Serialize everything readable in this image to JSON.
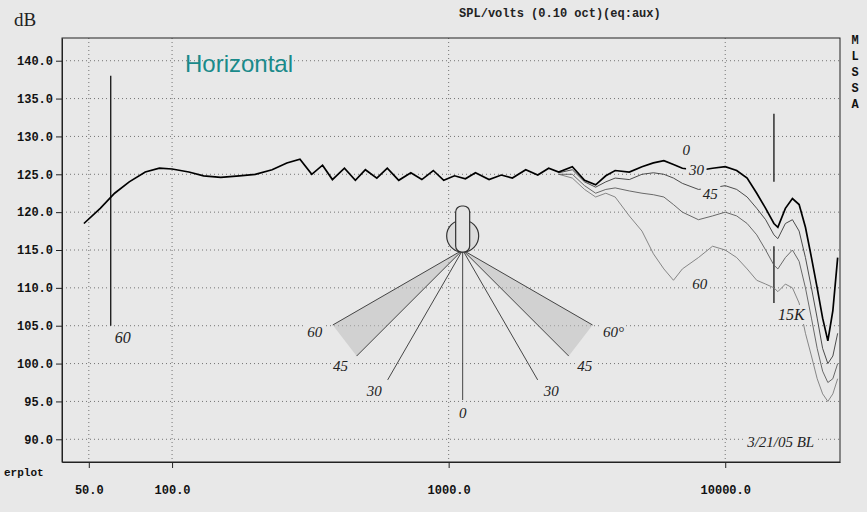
{
  "chart_data": {
    "type": "line",
    "title": "SPL/volts (0.10 oct)(eq:aux)",
    "subtitle": "Horizontal",
    "subtitle_color": "#1a8a8a",
    "ylabel": "dB",
    "footer": "erplot",
    "side_label": "MLSSA",
    "log": "x",
    "grid": true,
    "xlim": [
      40,
      26000
    ],
    "ylim": [
      87,
      143
    ],
    "xticks": [
      {
        "value": 50,
        "label": "50.0"
      },
      {
        "value": 100,
        "label": "100.0"
      },
      {
        "value": 1000,
        "label": "1000.0"
      },
      {
        "value": 10000,
        "label": "10000.0"
      }
    ],
    "yticks": [
      {
        "value": 90,
        "label": "90.0"
      },
      {
        "value": 95,
        "label": "95.0"
      },
      {
        "value": 100,
        "label": "100.0"
      },
      {
        "value": 105,
        "label": "105.0"
      },
      {
        "value": 110,
        "label": "110.0"
      },
      {
        "value": 115,
        "label": "115.0"
      },
      {
        "value": 120,
        "label": "120.0"
      },
      {
        "value": 125,
        "label": "125.0"
      },
      {
        "value": 130,
        "label": "130.0"
      },
      {
        "value": 135,
        "label": "135.0"
      },
      {
        "value": 140,
        "label": "140.0"
      }
    ],
    "x": [
      48,
      55,
      62,
      70,
      80,
      90,
      100,
      115,
      130,
      150,
      175,
      200,
      230,
      260,
      290,
      320,
      350,
      380,
      420,
      460,
      500,
      550,
      600,
      660,
      730,
      800,
      880,
      960,
      1050,
      1150,
      1250,
      1400,
      1550,
      1700,
      1900,
      2100,
      2300,
      2500,
      2800,
      3100,
      3400,
      3700,
      4000,
      4500,
      5000,
      5500,
      6000,
      6500,
      7000,
      8000,
      9000,
      10000,
      11000,
      12000,
      13000,
      14000,
      15000,
      15500,
      16500,
      17500,
      18500,
      19500,
      20500,
      21500,
      22500,
      23500,
      24500,
      25500
    ],
    "series": [
      {
        "name": "0",
        "color": "#000000",
        "values": [
          118.5,
          120.5,
          122.5,
          124,
          125.3,
          125.8,
          125.7,
          125.3,
          124.8,
          124.6,
          124.8,
          125,
          125.6,
          126.5,
          127,
          125,
          126.2,
          124.3,
          125.8,
          124.2,
          125.6,
          124.5,
          125.8,
          124.2,
          125.2,
          124.3,
          125.5,
          124.2,
          124.8,
          124.4,
          125.2,
          124.3,
          124.9,
          124.5,
          125.6,
          124.9,
          125.8,
          125.3,
          126,
          124.2,
          123.6,
          124.8,
          125.5,
          125.3,
          126,
          126.5,
          126.8,
          126.3,
          125.8,
          125.5,
          125.8,
          126,
          125.5,
          124.5,
          122.5,
          120.5,
          118.5,
          118,
          120.5,
          121.8,
          121,
          118,
          114,
          110,
          106,
          103,
          107,
          114
        ]
      },
      {
        "name": "30",
        "color": "#3a3a3a",
        "values": [
          null,
          null,
          null,
          null,
          null,
          null,
          null,
          null,
          null,
          null,
          null,
          null,
          null,
          null,
          null,
          null,
          null,
          null,
          null,
          null,
          null,
          null,
          null,
          null,
          null,
          null,
          null,
          null,
          null,
          null,
          null,
          null,
          null,
          null,
          null,
          null,
          null,
          125.2,
          125.6,
          124,
          123.3,
          124,
          124.5,
          124.3,
          125,
          125.2,
          125,
          124.5,
          123.8,
          123,
          123.2,
          123.5,
          123,
          122,
          120.5,
          119,
          117,
          116.5,
          118.5,
          119,
          117.5,
          114,
          110,
          106,
          102,
          100,
          101,
          104
        ]
      },
      {
        "name": "45",
        "color": "#5a5a5a",
        "values": [
          null,
          null,
          null,
          null,
          null,
          null,
          null,
          null,
          null,
          null,
          null,
          null,
          null,
          null,
          null,
          null,
          null,
          null,
          null,
          null,
          null,
          null,
          null,
          null,
          null,
          null,
          null,
          null,
          null,
          null,
          null,
          null,
          null,
          null,
          null,
          null,
          null,
          125,
          125,
          123.5,
          122.5,
          123,
          123.2,
          122.8,
          122.5,
          122.3,
          122,
          121,
          120,
          119,
          119.5,
          120,
          119.5,
          118.5,
          117,
          115,
          113,
          112.5,
          114,
          115,
          113.5,
          110,
          106,
          102,
          99,
          97.5,
          98,
          100
        ]
      },
      {
        "name": "60",
        "color": "#7a7a7a",
        "values": [
          null,
          null,
          null,
          null,
          null,
          null,
          null,
          null,
          null,
          null,
          null,
          null,
          null,
          null,
          null,
          null,
          null,
          null,
          null,
          null,
          null,
          null,
          null,
          null,
          null,
          null,
          null,
          null,
          null,
          null,
          null,
          null,
          null,
          null,
          null,
          null,
          null,
          125,
          124.5,
          123,
          122,
          122.5,
          122,
          119.5,
          117.5,
          114.5,
          112.5,
          111,
          112.5,
          114,
          115.5,
          115,
          114,
          112.5,
          111,
          110.5,
          110,
          109.5,
          110.5,
          110,
          108,
          104,
          101,
          98,
          96,
          95,
          96,
          98
        ]
      }
    ],
    "annotations": [
      {
        "text": "0",
        "x": 7000,
        "y": 127.6
      },
      {
        "text": "30",
        "x": 7400,
        "y": 124.9
      },
      {
        "text": "45",
        "x": 8300,
        "y": 121.7
      },
      {
        "text": "60",
        "x": 7600,
        "y": 109.8
      },
      {
        "text": "3/21/05 BL",
        "x": 12000,
        "y": 89
      }
    ],
    "vlines": [
      {
        "x": 60,
        "label": "60",
        "segments": [
          [
            105,
            138
          ]
        ]
      },
      {
        "x": 15000,
        "label": "15K",
        "segments": [
          [
            108,
            115.5
          ],
          [
            124,
            133
          ]
        ]
      }
    ],
    "diagram": {
      "angles": [
        -60,
        -45,
        -30,
        0,
        30,
        45,
        60
      ],
      "labels": [
        "60",
        "45",
        "30",
        "0",
        "30",
        "45",
        "60°"
      ]
    }
  }
}
